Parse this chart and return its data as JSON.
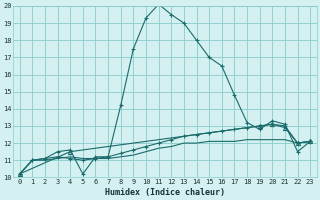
{
  "xlabel": "Humidex (Indice chaleur)",
  "bg_color": "#d4f0f0",
  "grid_color": "#88cccc",
  "line_color": "#1a6b6b",
  "xlim": [
    -0.5,
    23.5
  ],
  "ylim": [
    10,
    20
  ],
  "yticks": [
    10,
    11,
    12,
    13,
    14,
    15,
    16,
    17,
    18,
    19,
    20
  ],
  "xticks": [
    0,
    1,
    2,
    3,
    4,
    5,
    6,
    7,
    8,
    9,
    10,
    11,
    12,
    13,
    14,
    15,
    16,
    17,
    18,
    19,
    20,
    21,
    22,
    23
  ],
  "series1_x": [
    0,
    1,
    2,
    3,
    4,
    5,
    6,
    7,
    8,
    9,
    10,
    11,
    12,
    13,
    14,
    15,
    16,
    17,
    18,
    19,
    20,
    21,
    22,
    23
  ],
  "series1_y": [
    10.2,
    11.0,
    11.1,
    11.5,
    11.6,
    10.2,
    11.2,
    11.2,
    14.2,
    17.5,
    19.3,
    20.1,
    19.5,
    19.0,
    18.0,
    17.0,
    16.5,
    14.8,
    13.2,
    12.8,
    13.3,
    13.1,
    11.5,
    12.1
  ],
  "series2_x": [
    0,
    1,
    2,
    3,
    4,
    5,
    6,
    7,
    8,
    9,
    10,
    11,
    12,
    13,
    14,
    15,
    16,
    17,
    18,
    19,
    20,
    21,
    22,
    23
  ],
  "series2_y": [
    10.2,
    11.0,
    11.1,
    11.2,
    11.1,
    11.0,
    11.1,
    11.2,
    11.4,
    11.6,
    11.8,
    12.0,
    12.2,
    12.4,
    12.5,
    12.6,
    12.7,
    12.8,
    12.9,
    13.0,
    13.1,
    13.0,
    12.0,
    12.1
  ],
  "series3_x": [
    0,
    1,
    2,
    3,
    4,
    5,
    6,
    7,
    8,
    9,
    10,
    11,
    12,
    13,
    14,
    15,
    16,
    17,
    18,
    19,
    20,
    21,
    22,
    23
  ],
  "series3_y": [
    10.2,
    11.0,
    11.0,
    11.1,
    11.2,
    11.1,
    11.1,
    11.1,
    11.2,
    11.3,
    11.5,
    11.7,
    11.8,
    12.0,
    12.0,
    12.1,
    12.1,
    12.1,
    12.2,
    12.2,
    12.2,
    12.2,
    12.0,
    12.1
  ],
  "series4_x": [
    0,
    4,
    19,
    20,
    21,
    22,
    23
  ],
  "series4_y": [
    10.2,
    11.5,
    13.0,
    13.1,
    12.9,
    12.0,
    12.1
  ]
}
